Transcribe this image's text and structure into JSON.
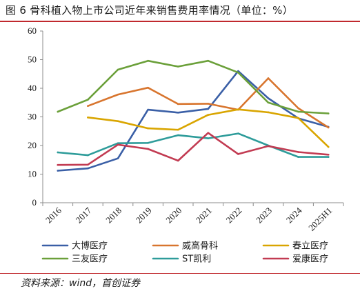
{
  "header": {
    "title": "图 6  骨科植入物上市公司近年来销售费用率情况（单位：%）"
  },
  "footer": {
    "source": "资料来源：wind，首创证券"
  },
  "chart_data": {
    "type": "line",
    "title": "图 6  骨科植入物上市公司近年来销售费用率情况（单位：%）",
    "categories": [
      "2016",
      "2017",
      "2018",
      "2019",
      "2020",
      "2021",
      "2022",
      "2023",
      "2024",
      "2025H1"
    ],
    "ylim": [
      0,
      60
    ],
    "yticks": [
      0,
      10,
      20,
      30,
      40,
      50,
      60
    ],
    "grid": false,
    "legend_position": "bottom",
    "series": [
      {
        "name": "大博医疗",
        "color": "#3a5fa6",
        "values": [
          11.2,
          12.0,
          15.5,
          32.5,
          31.5,
          32.8,
          46.0,
          36.5,
          29.5,
          26.5
        ]
      },
      {
        "name": "威高骨科",
        "color": "#d8752e",
        "values": [
          null,
          33.8,
          37.8,
          40.2,
          34.5,
          34.6,
          32.5,
          43.5,
          33.0,
          26.3
        ]
      },
      {
        "name": "春立医疗",
        "color": "#d9a500",
        "values": [
          null,
          29.8,
          28.5,
          26.0,
          25.5,
          30.7,
          32.6,
          31.6,
          29.6,
          19.5
        ]
      },
      {
        "name": "三友医疗",
        "color": "#6ba03a",
        "values": [
          31.8,
          36.0,
          46.5,
          49.6,
          47.6,
          49.6,
          45.5,
          35.0,
          31.8,
          31.2
        ]
      },
      {
        "name": "ST凯利",
        "color": "#2e9c9a",
        "values": [
          17.6,
          16.6,
          20.8,
          20.9,
          23.6,
          22.5,
          24.2,
          20.0,
          16.0,
          16.0
        ]
      },
      {
        "name": "爱康医疗",
        "color": "#c23b52",
        "values": [
          13.2,
          13.3,
          20.3,
          18.8,
          14.7,
          24.4,
          17.0,
          19.8,
          17.7,
          16.8
        ]
      }
    ]
  }
}
